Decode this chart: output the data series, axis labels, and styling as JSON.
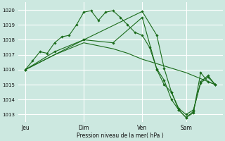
{
  "background_color": "#cce8e0",
  "grid_color": "#ffffff",
  "line_color": "#1a6b1a",
  "xlabel": "Pression niveau de la mer( hPa )",
  "ylim": [
    1012.5,
    1020.5
  ],
  "yticks": [
    1013,
    1014,
    1015,
    1016,
    1017,
    1018,
    1019,
    1020
  ],
  "day_labels": [
    "Jeu",
    "Dim",
    "Ven",
    "Sam"
  ],
  "day_positions": [
    0,
    8,
    16,
    22
  ],
  "xlim": [
    -1,
    27
  ],
  "series1_x": [
    0,
    1,
    2,
    3,
    4,
    5,
    6,
    7,
    8,
    9,
    10,
    11,
    12,
    13,
    14,
    15,
    16,
    17,
    18,
    19,
    20,
    21,
    22,
    23,
    24,
    25,
    26
  ],
  "series1_y": [
    1016.0,
    1016.6,
    1017.2,
    1017.1,
    1017.8,
    1018.2,
    1018.3,
    1019.0,
    1019.85,
    1019.95,
    1019.3,
    1019.85,
    1019.95,
    1019.5,
    1019.0,
    1018.5,
    1018.3,
    1017.5,
    1016.05,
    1015.3,
    1014.0,
    1013.3,
    1012.8,
    1013.1,
    1015.8,
    1015.2,
    1015.0
  ],
  "series2_x": [
    0,
    2,
    4,
    6,
    8,
    10,
    12,
    14,
    16,
    18,
    20,
    22,
    24,
    26
  ],
  "series2_y": [
    1016.0,
    1016.5,
    1017.0,
    1017.4,
    1017.8,
    1017.6,
    1017.4,
    1017.1,
    1016.7,
    1016.4,
    1016.1,
    1015.8,
    1015.4,
    1015.0
  ],
  "series3_x": [
    0,
    8,
    16,
    18,
    19,
    20,
    21,
    22,
    23,
    24,
    25,
    26
  ],
  "series3_y": [
    1016.0,
    1018.0,
    1019.9,
    1018.3,
    1016.1,
    1014.5,
    1013.3,
    1012.8,
    1013.2,
    1015.2,
    1015.6,
    1015.0
  ],
  "series4_x": [
    0,
    4,
    8,
    12,
    16,
    18,
    19,
    20,
    21,
    22,
    23,
    24,
    25,
    26
  ],
  "series4_y": [
    1016.0,
    1017.2,
    1018.0,
    1017.8,
    1019.5,
    1016.0,
    1015.0,
    1014.5,
    1013.4,
    1013.0,
    1013.3,
    1015.1,
    1015.5,
    1015.0
  ]
}
